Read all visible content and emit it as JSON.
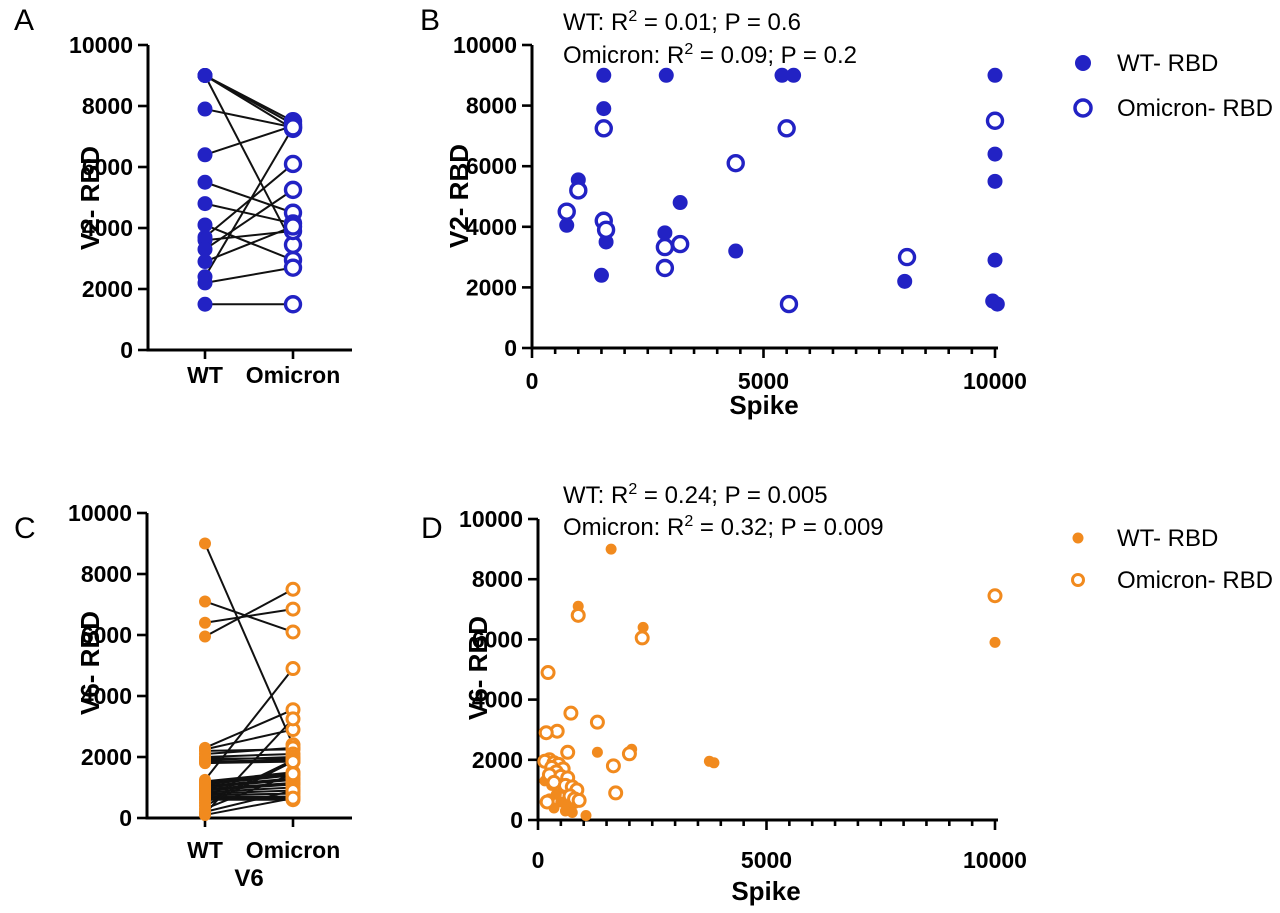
{
  "colors": {
    "blue": "#2222C4",
    "orange": "#F18A1E",
    "axis": "#000000",
    "pair_line": "#111111",
    "background": "#FFFFFF"
  },
  "legend_labels": {
    "wt": "WT- RBD",
    "omicron": "Omicron- RBD"
  },
  "chart_data": {
    "panels": [
      {
        "id": "A",
        "label": "A",
        "type": "paired",
        "color": "#2222C4",
        "y_title": "V2- RBD",
        "x_title": "",
        "categories": [
          "WT",
          "Omicron"
        ],
        "ylim": [
          0,
          10000
        ],
        "y_ticks": [
          0,
          2000,
          4000,
          6000,
          8000,
          10000
        ],
        "y_tick_labels": [
          "0",
          "2000",
          "4000",
          "6000",
          "8000",
          "10000"
        ],
        "pairs": [
          [
            9000,
            7500
          ],
          [
            9000,
            7400
          ],
          [
            9000,
            7250
          ],
          [
            9000,
            3450
          ],
          [
            7900,
            7300
          ],
          [
            6400,
            7350
          ],
          [
            5500,
            4500
          ],
          [
            4800,
            4150
          ],
          [
            4100,
            2950
          ],
          [
            3700,
            6100
          ],
          [
            3600,
            3900
          ],
          [
            3300,
            5250
          ],
          [
            2900,
            4050
          ],
          [
            2400,
            7300
          ],
          [
            2200,
            2700
          ],
          [
            1500,
            1500
          ]
        ]
      },
      {
        "id": "B",
        "label": "B",
        "type": "scatter",
        "color": "#2222C4",
        "y_title": "V2- RBD",
        "x_title": "Spike",
        "xlim": [
          0,
          10000
        ],
        "ylim": [
          0,
          10000
        ],
        "y_ticks": [
          0,
          2000,
          4000,
          6000,
          8000,
          10000
        ],
        "y_tick_labels": [
          "0",
          "2000",
          "4000",
          "6000",
          "8000",
          "10000"
        ],
        "x_ticks": [
          0,
          5000,
          10000
        ],
        "x_tick_labels": [
          "0",
          "5000",
          "10000"
        ],
        "x_minor_step": 500,
        "annotations": [
          {
            "parts": [
              {
                "t": "WT: R"
              },
              {
                "t": "2",
                "sup": true
              },
              {
                "t": " = 0.01; P = 0.6"
              }
            ]
          },
          {
            "parts": [
              {
                "t": "Omicron: R"
              },
              {
                "t": "2",
                "sup": true
              },
              {
                "t": " = 0.09; P = 0.2"
              }
            ]
          }
        ],
        "legend": {
          "items": [
            {
              "marker": "filled",
              "label": "WT- RBD"
            },
            {
              "marker": "open",
              "label": "Omicron- RBD"
            }
          ]
        },
        "series": [
          {
            "name": "WT- RBD",
            "marker": "filled",
            "points": [
              [
                1550,
                9000
              ],
              [
                2900,
                9000
              ],
              [
                5400,
                9000
              ],
              [
                5650,
                9000
              ],
              [
                10000,
                9000
              ],
              [
                1550,
                7900
              ],
              [
                10000,
                6400
              ],
              [
                1000,
                5550
              ],
              [
                10000,
                5500
              ],
              [
                3200,
                4800
              ],
              [
                750,
                4050
              ],
              [
                2870,
                3800
              ],
              [
                1600,
                3500
              ],
              [
                4400,
                3200
              ],
              [
                10000,
                2900
              ],
              [
                1500,
                2400
              ],
              [
                8050,
                2200
              ],
              [
                9950,
                1550
              ],
              [
                10050,
                1450
              ]
            ]
          },
          {
            "name": "Omicron- RBD",
            "marker": "open",
            "points": [
              [
                1550,
                7250
              ],
              [
                5500,
                7250
              ],
              [
                10000,
                7500
              ],
              [
                4400,
                6100
              ],
              [
                1000,
                5200
              ],
              [
                750,
                4500
              ],
              [
                1550,
                4200
              ],
              [
                1600,
                3900
              ],
              [
                3200,
                3430
              ],
              [
                2870,
                3330
              ],
              [
                2870,
                2640
              ],
              [
                8100,
                3000
              ],
              [
                5550,
                1450
              ]
            ]
          }
        ]
      },
      {
        "id": "C",
        "label": "C",
        "type": "paired",
        "color": "#F18A1E",
        "y_title": "V6- RBD",
        "x_title": "V6",
        "categories": [
          "WT",
          "Omicron"
        ],
        "ylim": [
          0,
          10000
        ],
        "y_ticks": [
          0,
          2000,
          4000,
          6000,
          8000,
          10000
        ],
        "y_tick_labels": [
          "0",
          "2000",
          "4000",
          "6000",
          "8000",
          "10000"
        ],
        "pairs": [
          [
            9000,
            2400
          ],
          [
            7100,
            6100
          ],
          [
            6400,
            6850
          ],
          [
            5950,
            7500
          ],
          [
            2300,
            3550
          ],
          [
            2250,
            2900
          ],
          [
            2200,
            2250
          ],
          [
            2100,
            2300
          ],
          [
            2000,
            2100
          ],
          [
            1950,
            1950
          ],
          [
            1900,
            2000
          ],
          [
            1850,
            1900
          ],
          [
            1800,
            1850
          ],
          [
            1250,
            4900
          ],
          [
            1200,
            1500
          ],
          [
            1150,
            1450
          ],
          [
            1100,
            1400
          ],
          [
            1050,
            1300
          ],
          [
            1000,
            1250
          ],
          [
            950,
            1150
          ],
          [
            900,
            1100
          ],
          [
            850,
            1000
          ],
          [
            800,
            900
          ],
          [
            750,
            800
          ],
          [
            700,
            700
          ],
          [
            650,
            650
          ],
          [
            600,
            600
          ],
          [
            500,
            1900
          ],
          [
            400,
            1850
          ],
          [
            300,
            1450
          ],
          [
            200,
            900
          ],
          [
            150,
            3250
          ],
          [
            100,
            650
          ]
        ]
      },
      {
        "id": "D",
        "label": "D",
        "type": "scatter",
        "color": "#F18A1E",
        "y_title": "V6- RBD",
        "x_title": "Spike",
        "xlim": [
          0,
          10000
        ],
        "ylim": [
          0,
          10000
        ],
        "y_ticks": [
          0,
          2000,
          4000,
          6000,
          8000,
          10000
        ],
        "y_tick_labels": [
          "0",
          "2000",
          "4000",
          "6000",
          "8000",
          "10000"
        ],
        "x_ticks": [
          0,
          5000,
          10000
        ],
        "x_tick_labels": [
          "0",
          "5000",
          "10000"
        ],
        "x_minor_step": 500,
        "annotations": [
          {
            "parts": [
              {
                "t": "WT: R"
              },
              {
                "t": "2",
                "sup": true
              },
              {
                "t": " = 0.24; P = 0.005"
              }
            ]
          },
          {
            "parts": [
              {
                "t": "Omicron: R"
              },
              {
                "t": "2",
                "sup": true
              },
              {
                "t": " = 0.32; P = 0.009"
              }
            ]
          }
        ],
        "legend": {
          "items": [
            {
              "marker": "filled",
              "label": "WT- RBD"
            },
            {
              "marker": "open",
              "label": "Omicron- RBD"
            }
          ]
        },
        "series": [
          {
            "name": "WT- RBD",
            "marker": "filled",
            "points": [
              [
                1600,
                9000
              ],
              [
                880,
                7100
              ],
              [
                2300,
                6400
              ],
              [
                10000,
                5900
              ],
              [
                2050,
                2350
              ],
              [
                1300,
                2250
              ],
              [
                3750,
                1950
              ],
              [
                3850,
                1900
              ],
              [
                200,
                1900
              ],
              [
                250,
                1800
              ],
              [
                350,
                1650
              ],
              [
                450,
                1400
              ],
              [
                150,
                1300
              ],
              [
                300,
                1150
              ],
              [
                550,
                1050
              ],
              [
                650,
                950
              ],
              [
                400,
                850
              ],
              [
                900,
                750
              ],
              [
                250,
                700
              ],
              [
                500,
                600
              ],
              [
                800,
                550
              ],
              [
                650,
                500
              ],
              [
                350,
                400
              ],
              [
                600,
                300
              ],
              [
                750,
                250
              ],
              [
                1050,
                150
              ]
            ]
          },
          {
            "name": "Omicron- RBD",
            "marker": "open",
            "points": [
              [
                10000,
                7450
              ],
              [
                880,
                6800
              ],
              [
                2280,
                6050
              ],
              [
                220,
                4900
              ],
              [
                720,
                3550
              ],
              [
                1300,
                3250
              ],
              [
                420,
                2950
              ],
              [
                180,
                2900
              ],
              [
                650,
                2250
              ],
              [
                2000,
                2200
              ],
              [
                250,
                2000
              ],
              [
                150,
                1950
              ],
              [
                350,
                1900
              ],
              [
                450,
                1850
              ],
              [
                1650,
                1800
              ],
              [
                300,
                1750
              ],
              [
                550,
                1700
              ],
              [
                400,
                1600
              ],
              [
                250,
                1500
              ],
              [
                500,
                1450
              ],
              [
                650,
                1400
              ],
              [
                350,
                1250
              ],
              [
                600,
                1150
              ],
              [
                750,
                1100
              ],
              [
                850,
                1000
              ],
              [
                1700,
                900
              ],
              [
                700,
                800
              ],
              [
                800,
                700
              ],
              [
                900,
                650
              ],
              [
                200,
                600
              ]
            ]
          }
        ]
      }
    ]
  }
}
